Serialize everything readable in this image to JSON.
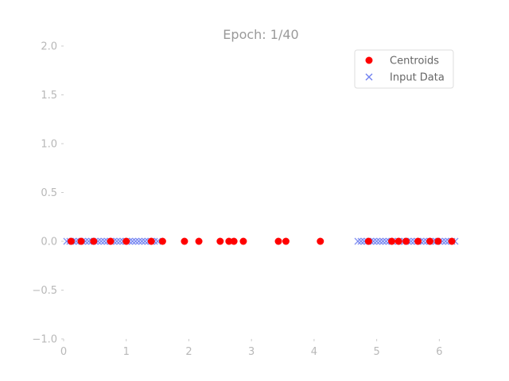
{
  "chart_data": {
    "type": "scatter",
    "title": "Epoch: 1/40",
    "xlabel": "",
    "ylabel": "",
    "xlim": [
      0,
      6.3
    ],
    "ylim": [
      -1.0,
      2.0
    ],
    "grid": false,
    "legend_position": "top-right",
    "x_ticks": [
      0,
      1,
      2,
      3,
      4,
      5,
      6
    ],
    "y_ticks": [
      -1.0,
      -0.5,
      0.0,
      0.5,
      1.0,
      1.5,
      2.0
    ],
    "x_tick_labels": [
      "0",
      "1",
      "2",
      "3",
      "4",
      "5",
      "6"
    ],
    "y_tick_labels": [
      "−1.0",
      "−0.5",
      "0.0",
      "0.5",
      "1.0",
      "1.5",
      "2.0"
    ],
    "series": [
      {
        "name": "Input Data",
        "marker": "x",
        "color": "#6f7ff0",
        "x": [
          0.05,
          0.1,
          0.15,
          0.2,
          0.25,
          0.3,
          0.35,
          0.4,
          0.45,
          0.5,
          0.55,
          0.6,
          0.65,
          0.7,
          0.75,
          0.8,
          0.85,
          0.9,
          0.95,
          1.0,
          1.05,
          1.1,
          1.15,
          1.2,
          1.25,
          1.3,
          1.35,
          1.4,
          1.45,
          1.5,
          4.7,
          4.75,
          4.8,
          4.85,
          4.9,
          4.95,
          5.0,
          5.05,
          5.1,
          5.15,
          5.2,
          5.25,
          5.3,
          5.35,
          5.4,
          5.45,
          5.5,
          5.55,
          5.6,
          5.65,
          5.7,
          5.75,
          5.8,
          5.85,
          5.9,
          5.95,
          6.0,
          6.05,
          6.1,
          6.15,
          6.2,
          6.25
        ],
        "y": [
          0,
          0,
          0,
          0,
          0,
          0,
          0,
          0,
          0,
          0,
          0,
          0,
          0,
          0,
          0,
          0,
          0,
          0,
          0,
          0,
          0,
          0,
          0,
          0,
          0,
          0,
          0,
          0,
          0,
          0,
          0,
          0,
          0,
          0,
          0,
          0,
          0,
          0,
          0,
          0,
          0,
          0,
          0,
          0,
          0,
          0,
          0,
          0,
          0,
          0,
          0,
          0,
          0,
          0,
          0,
          0,
          0,
          0,
          0,
          0,
          0,
          0
        ]
      },
      {
        "name": "Centroids",
        "marker": "o",
        "color": "#ff0000",
        "x": [
          0.12,
          0.28,
          0.48,
          0.75,
          1.0,
          1.4,
          1.58,
          1.93,
          2.16,
          2.5,
          2.64,
          2.72,
          2.87,
          3.43,
          3.55,
          4.1,
          4.87,
          5.24,
          5.35,
          5.47,
          5.66,
          5.85,
          5.98,
          6.2
        ],
        "y": [
          0,
          0,
          0,
          0,
          0,
          0,
          0,
          0,
          0,
          0,
          0,
          0,
          0,
          0,
          0,
          0,
          0,
          0,
          0,
          0,
          0,
          0,
          0,
          0
        ]
      }
    ],
    "legend": [
      {
        "label": "Centroids",
        "marker": "o",
        "color": "#ff0000"
      },
      {
        "label": "Input Data",
        "marker": "x",
        "color": "#6f7ff0"
      }
    ]
  }
}
